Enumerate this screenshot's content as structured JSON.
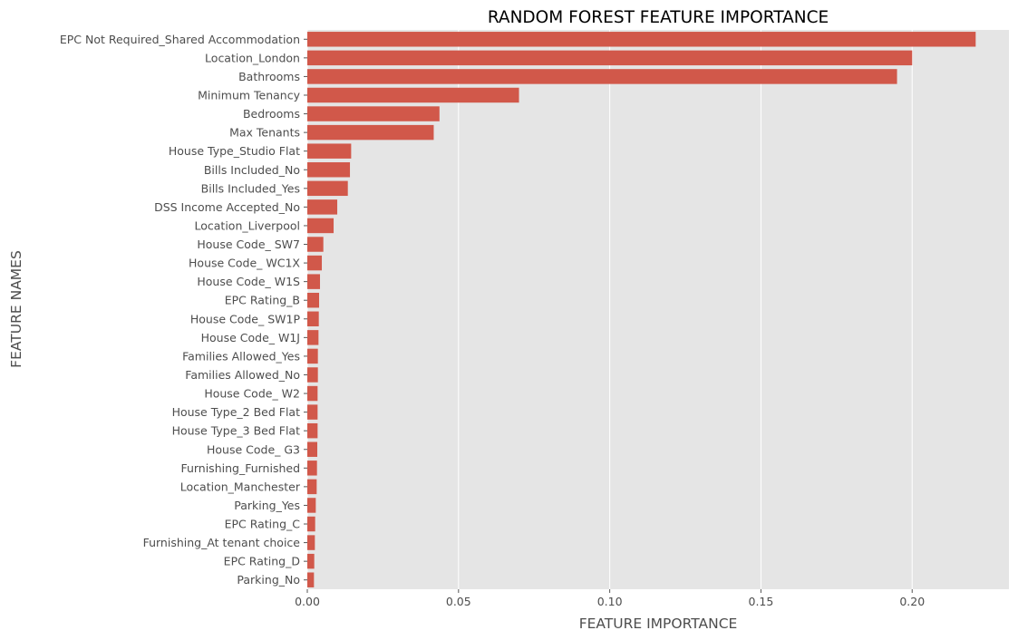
{
  "chart_data": {
    "type": "bar",
    "orientation": "horizontal",
    "title": "RANDOM FOREST FEATURE IMPORTANCE",
    "xlabel": "FEATURE IMPORTANCE",
    "ylabel": "FEATURE NAMES",
    "xlim": [
      0,
      0.232
    ],
    "xticks": [
      0.0,
      0.05,
      0.1,
      0.15,
      0.2
    ],
    "xtick_labels": [
      "0.00",
      "0.05",
      "0.10",
      "0.15",
      "0.20"
    ],
    "grid": true,
    "legend": "none",
    "bar_color": "#d1584a",
    "plot_background": "#e5e5e5",
    "grid_color": "#ffffff",
    "categories": [
      "EPC Not Required_Shared Accommodation",
      "Location_London",
      "Bathrooms",
      "Minimum Tenancy",
      "Bedrooms",
      "Max Tenants",
      "House Type_Studio Flat",
      "Bills Included_No",
      "Bills Included_Yes",
      "DSS Income Accepted_No",
      "Location_Liverpool",
      "House Code_ SW7",
      "House Code_ WC1X",
      "House Code_ W1S",
      "EPC Rating_B",
      "House Code_ SW1P",
      "House Code_ W1J",
      "Families Allowed_Yes",
      "Families Allowed_No",
      "House Code_ W2",
      "House Type_2 Bed Flat",
      "House Type_3 Bed Flat",
      "House Code_ G3",
      "Furnishing_Furnished",
      "Location_Manchester",
      "Parking_Yes",
      "EPC Rating_C",
      "Furnishing_At tenant choice",
      "EPC Rating_D",
      "Parking_No"
    ],
    "values": [
      0.221,
      0.2,
      0.195,
      0.07,
      0.0437,
      0.0418,
      0.0145,
      0.0141,
      0.0134,
      0.0099,
      0.0087,
      0.0053,
      0.0048,
      0.0042,
      0.0039,
      0.0038,
      0.0037,
      0.0035,
      0.0035,
      0.0034,
      0.0034,
      0.0034,
      0.0033,
      0.0032,
      0.0031,
      0.0028,
      0.0026,
      0.0025,
      0.0023,
      0.0022
    ]
  }
}
